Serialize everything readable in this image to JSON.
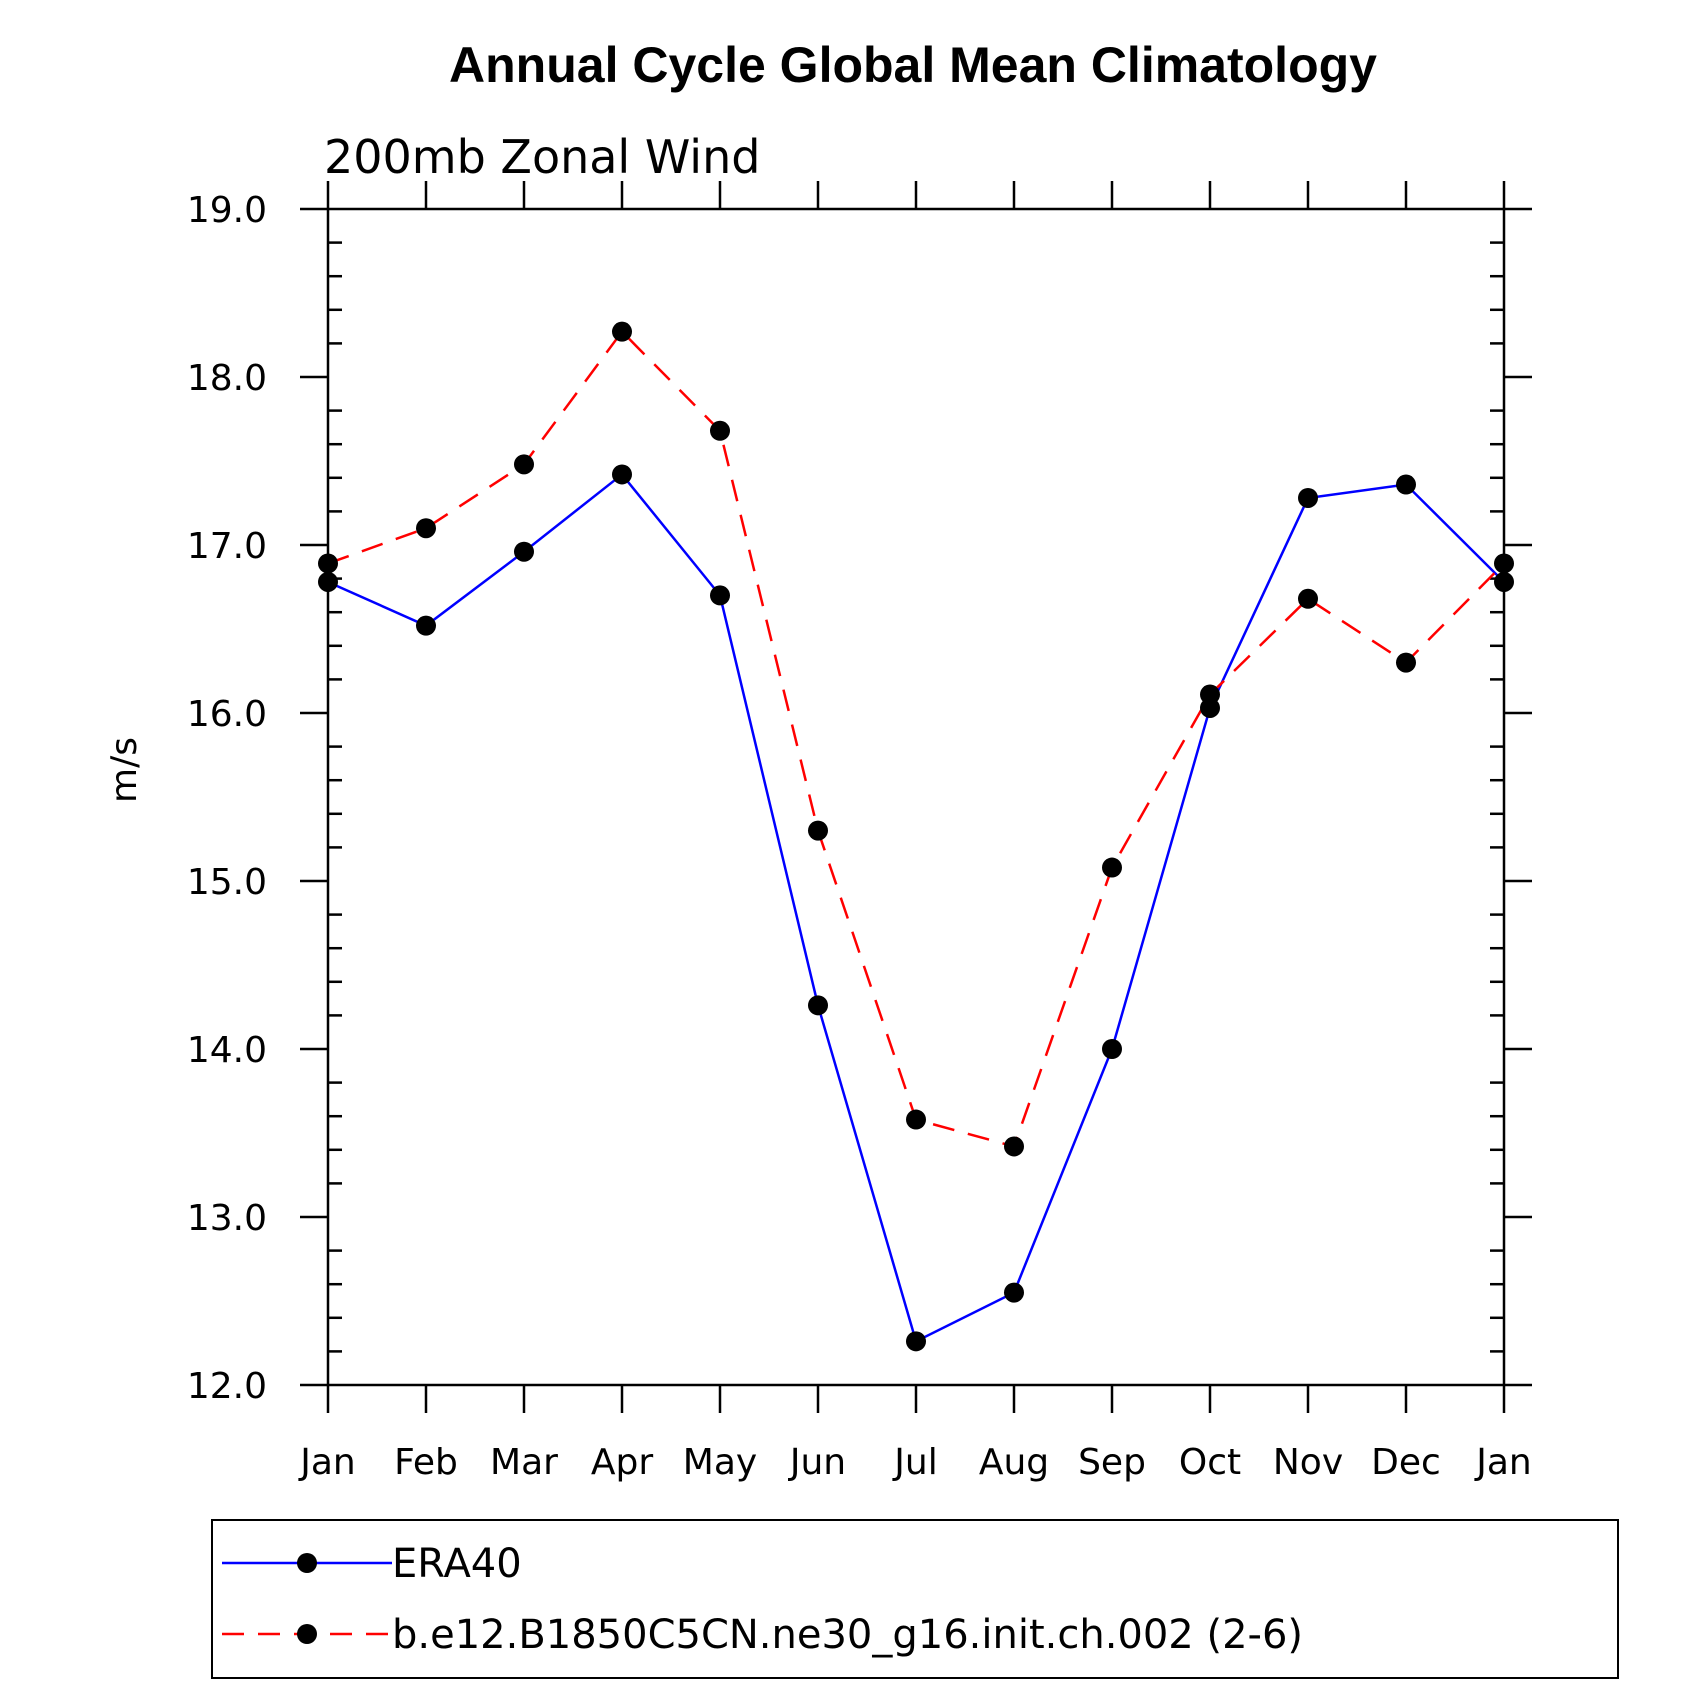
{
  "chart_data": {
    "type": "line",
    "title": "Annual Cycle Global Mean Climatology",
    "subtitle": "200mb Zonal Wind",
    "xlabel": "",
    "ylabel": "m/s",
    "categories": [
      "Jan",
      "Feb",
      "Mar",
      "Apr",
      "May",
      "Jun",
      "Jul",
      "Aug",
      "Sep",
      "Oct",
      "Nov",
      "Dec",
      "Jan"
    ],
    "ylim": [
      12.0,
      19.0
    ],
    "yticks": [
      "12.0",
      "13.0",
      "14.0",
      "15.0",
      "16.0",
      "17.0",
      "18.0",
      "19.0"
    ],
    "grid": false,
    "legend_position": "bottom",
    "series": [
      {
        "name": "ERA40",
        "color": "#0000ff",
        "dash": "solid",
        "values": [
          16.78,
          16.52,
          16.96,
          17.42,
          16.7,
          14.26,
          12.26,
          12.55,
          14.0,
          16.03,
          17.28,
          17.36,
          16.78
        ]
      },
      {
        "name": "b.e12.B1850C5CN.ne30_g16.init.ch.002 (2-6)",
        "color": "#ff0000",
        "dash": "dashed",
        "values": [
          16.89,
          17.1,
          17.48,
          18.27,
          17.68,
          15.3,
          13.58,
          13.42,
          15.08,
          16.11,
          16.68,
          16.3,
          16.89
        ]
      }
    ]
  }
}
